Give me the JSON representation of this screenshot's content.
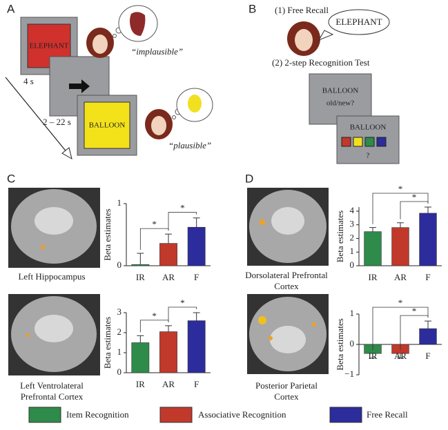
{
  "panel_a": {
    "label": "A",
    "screen1_word": "ELEPHANT",
    "duration1": "4 s",
    "judgment1": "“implausible”",
    "duration2": "2 – 22 s",
    "screen3_word": "BALLOON",
    "judgment2": "“plausible”"
  },
  "panel_b": {
    "label": "B",
    "step1": "(1) Free Recall",
    "recall_word": "ELEPHANT",
    "step2": "(2) 2-step Recognition Test",
    "box1_word": "BALLOON",
    "box1_question": "old/new?",
    "box2_word": "BALLOON",
    "box2_question": "?"
  },
  "panel_c": {
    "label": "C",
    "caption1": [
      "Left Hippocampus"
    ],
    "caption2": [
      "Left Ventrolateral",
      "Prefrontal Cortex"
    ]
  },
  "panel_d": {
    "label": "D",
    "caption1": [
      "Dorsolateral Prefrontal",
      "Cortex"
    ],
    "caption2": [
      "Posterior Parietal",
      "Cortex"
    ]
  },
  "legend": [
    {
      "name": "Item Recognition",
      "color": "#2e8b4a"
    },
    {
      "name": "Associative Recognition",
      "color": "#c0392b"
    },
    {
      "name": "Free Recall",
      "color": "#2c2c9c"
    }
  ],
  "chart_data": [
    {
      "type": "bar",
      "ylabel": "Beta estimates",
      "categories": [
        "IR",
        "AR",
        "F"
      ],
      "values": [
        0.02,
        0.36,
        0.62
      ],
      "errors": [
        0.18,
        0.15,
        0.15
      ],
      "colors": [
        "#2e8b4a",
        "#c0392b",
        "#2c2c9c"
      ],
      "ylim": [
        0,
        1
      ],
      "yticks": [
        0,
        1
      ],
      "brackets": [
        {
          "between": [
            "IR",
            "AR"
          ],
          "label": "*"
        },
        {
          "between": [
            "AR",
            "F"
          ],
          "label": "*"
        }
      ]
    },
    {
      "type": "bar",
      "ylabel": "Beta estimates",
      "categories": [
        "IR",
        "AR",
        "F"
      ],
      "values": [
        1.5,
        2.05,
        2.6
      ],
      "errors": [
        0.35,
        0.3,
        0.4
      ],
      "colors": [
        "#2e8b4a",
        "#c0392b",
        "#2c2c9c"
      ],
      "ylim": [
        0,
        3
      ],
      "yticks": [
        0,
        1,
        2,
        3
      ],
      "brackets": [
        {
          "between": [
            "IR",
            "AR"
          ],
          "label": "*"
        },
        {
          "between": [
            "AR",
            "F"
          ],
          "label": "*"
        }
      ]
    },
    {
      "type": "bar",
      "ylabel": "Beta estimates",
      "categories": [
        "IR",
        "AR",
        "F"
      ],
      "values": [
        2.5,
        2.8,
        3.85
      ],
      "errors": [
        0.3,
        0.35,
        0.45
      ],
      "colors": [
        "#2e8b4a",
        "#c0392b",
        "#2c2c9c"
      ],
      "ylim": [
        0,
        4.3
      ],
      "yticks": [
        0,
        1,
        2,
        3,
        4
      ],
      "brackets": [
        {
          "between": [
            "IR",
            "F"
          ],
          "label": "*"
        },
        {
          "between": [
            "AR",
            "F"
          ],
          "label": "*"
        }
      ]
    },
    {
      "type": "bar",
      "ylabel": "Beta estimates",
      "categories": [
        "IR",
        "AR",
        "F"
      ],
      "values": [
        -0.3,
        -0.3,
        0.52
      ],
      "errors": [
        0.15,
        0.15,
        0.25
      ],
      "colors": [
        "#2e8b4a",
        "#c0392b",
        "#2c2c9c"
      ],
      "ylim": [
        -1,
        1
      ],
      "yticks": [
        {
          "value": -1,
          "label": "−1"
        },
        0,
        1
      ],
      "brackets": [
        {
          "between": [
            "IR",
            "F"
          ],
          "label": "*"
        },
        {
          "between": [
            "AR",
            "F"
          ],
          "label": "*"
        }
      ]
    }
  ]
}
